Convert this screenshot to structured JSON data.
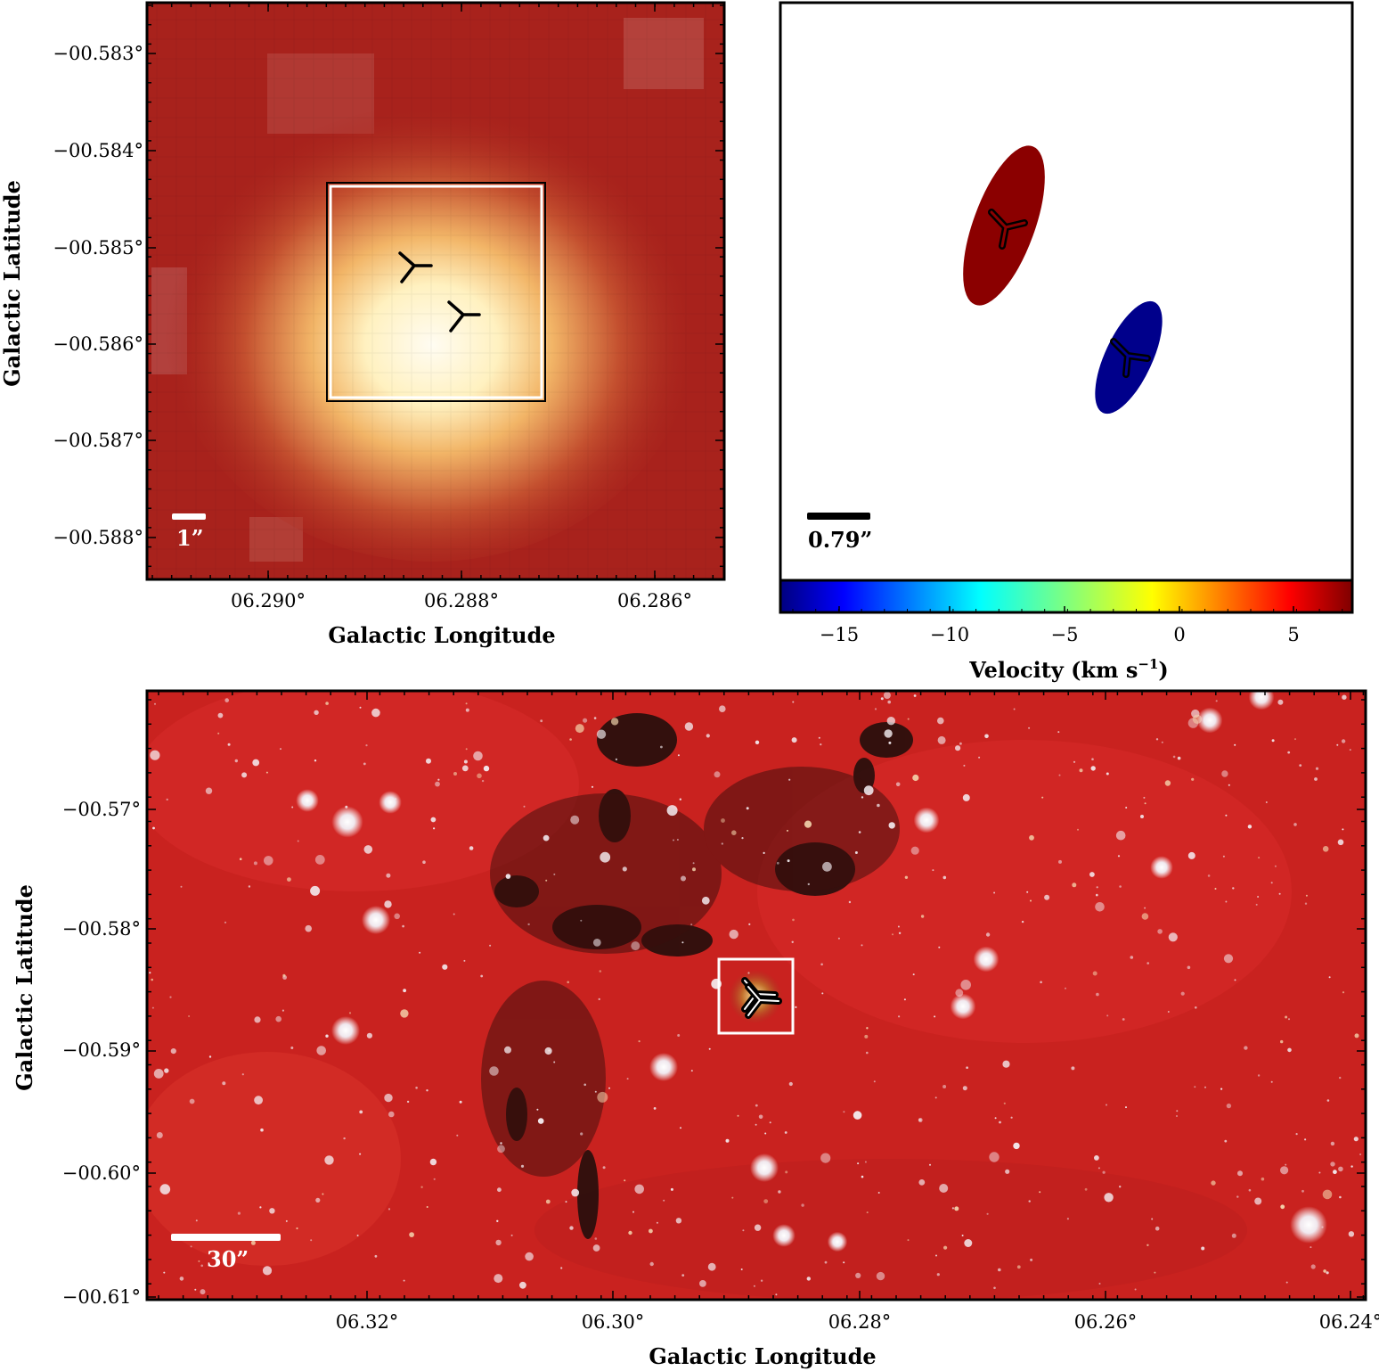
{
  "panel_tl": {
    "y_ticks": [
      "−00.583°",
      "−00.584°",
      "−00.585°",
      "−00.586°",
      "−00.587°",
      "−00.588°"
    ],
    "x_ticks": [
      "06.290°",
      "06.288°",
      "06.286°"
    ],
    "xlabel": "Galactic Longitude",
    "ylabel": "Galactic Latitude",
    "scalebar_label": "1”",
    "colors": {
      "base": "#a8221c",
      "core": "#fffbe8",
      "box": "#ffffff"
    }
  },
  "panel_tr": {
    "scalebar_label": "0.79”",
    "colorbar_ticks": [
      "−15",
      "−10",
      "−5",
      "0",
      "5"
    ],
    "colorbar_label": "Velocity (km s",
    "colorbar_label_sup": "−1",
    "colorbar_label_close": ")",
    "ellipse_colors": [
      "#8b0000",
      "#00008b"
    ],
    "chart_data": {
      "type": "scatter",
      "colorbar": {
        "quantity": "Velocity",
        "range": [
          -17.5,
          7.5
        ],
        "ticks": [
          -15,
          -10,
          -5,
          0,
          5
        ],
        "colormap": "jet"
      }
    }
  },
  "panel_bottom": {
    "y_ticks": [
      "−00.57°",
      "−00.58°",
      "−00.59°",
      "−00.60°",
      "−00.61°"
    ],
    "x_ticks": [
      "06.32°",
      "06.30°",
      "06.28°",
      "06.26°",
      "06.24°"
    ],
    "xlabel": "Galactic Longitude",
    "ylabel": "Galactic Latitude",
    "scalebar_label": "30”",
    "colors": {
      "base": "#c9221f",
      "dark_lane": "#1a0d0b",
      "star": "#ffffff"
    }
  }
}
